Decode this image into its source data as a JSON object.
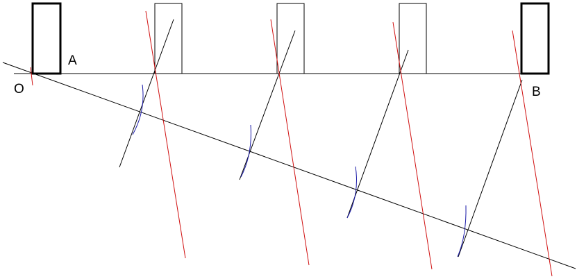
{
  "labels": {
    "origin": "O",
    "point_a": "A",
    "point_b": "B"
  },
  "colors": {
    "background": "#ffffff",
    "construction": "#000000",
    "perpendicular": "#d01010",
    "arc": "#1a1aa8"
  }
}
